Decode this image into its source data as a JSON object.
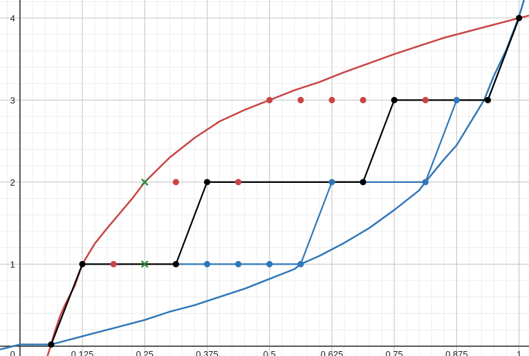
{
  "chart_data": {
    "type": "line",
    "title": "",
    "xlabel": "",
    "ylabel": "",
    "xlim": [
      -0.04,
      1.02
    ],
    "ylim": [
      -0.12,
      4.22
    ],
    "grid": true,
    "x_ticks": [
      {
        "value": 0.125,
        "label": "0.125"
      },
      {
        "value": 0.25,
        "label": "0.25"
      },
      {
        "value": 0.375,
        "label": "0.375"
      },
      {
        "value": 0.5,
        "label": "0.5"
      },
      {
        "value": 0.625,
        "label": "0.625"
      },
      {
        "value": 0.75,
        "label": "0.75"
      },
      {
        "value": 0.875,
        "label": "0.875"
      },
      {
        "value": 1,
        "label": "1"
      }
    ],
    "y_ticks": [
      {
        "value": 0,
        "label": "0"
      },
      {
        "value": 1,
        "label": "1"
      },
      {
        "value": 2,
        "label": "2"
      },
      {
        "value": 3,
        "label": "3"
      },
      {
        "value": 4,
        "label": "4"
      }
    ],
    "colors": {
      "red": "#c94444",
      "blue": "#2f76b8",
      "black": "#000000",
      "green": "#2e8b3e",
      "grid_major": "#c4c4c4",
      "grid_minor": "#ececec",
      "axis": "#333333"
    },
    "curves": [
      {
        "color": "red",
        "points": [
          [
            0.055,
            -0.12
          ],
          [
            0.0625,
            0.02
          ],
          [
            0.07,
            0.18
          ],
          [
            0.08,
            0.36
          ],
          [
            0.09,
            0.5
          ],
          [
            0.1,
            0.62
          ],
          [
            0.11,
            0.74
          ],
          [
            0.125,
            1.0
          ],
          [
            0.15,
            1.25
          ],
          [
            0.175,
            1.44
          ],
          [
            0.2,
            1.62
          ],
          [
            0.225,
            1.8
          ],
          [
            0.25,
            2.0
          ],
          [
            0.3,
            2.3
          ],
          [
            0.35,
            2.54
          ],
          [
            0.4,
            2.74
          ],
          [
            0.45,
            2.88
          ],
          [
            0.5,
            3.0
          ],
          [
            0.55,
            3.12
          ],
          [
            0.6,
            3.22
          ],
          [
            0.65,
            3.34
          ],
          [
            0.7,
            3.45
          ],
          [
            0.75,
            3.56
          ],
          [
            0.8,
            3.66
          ],
          [
            0.85,
            3.76
          ],
          [
            0.9,
            3.84
          ],
          [
            0.95,
            3.92
          ],
          [
            1.0,
            4.0
          ],
          [
            1.02,
            4.03
          ]
        ]
      },
      {
        "color": "blue",
        "points": [
          [
            -0.04,
            -0.04
          ],
          [
            0.0,
            0.02
          ],
          [
            0.0625,
            0.02
          ],
          [
            0.1,
            0.08
          ],
          [
            0.15,
            0.16
          ],
          [
            0.2,
            0.24
          ],
          [
            0.25,
            0.32
          ],
          [
            0.3,
            0.42
          ],
          [
            0.35,
            0.5
          ],
          [
            0.4,
            0.6
          ],
          [
            0.45,
            0.7
          ],
          [
            0.5,
            0.82
          ],
          [
            0.55,
            0.94
          ],
          [
            0.5625,
            1.0
          ],
          [
            0.6,
            1.1
          ],
          [
            0.65,
            1.26
          ],
          [
            0.7,
            1.44
          ],
          [
            0.75,
            1.66
          ],
          [
            0.8,
            1.9
          ],
          [
            0.8125,
            2.0
          ],
          [
            0.85,
            2.28
          ],
          [
            0.875,
            2.45
          ],
          [
            0.9,
            2.7
          ],
          [
            0.93,
            3.0
          ],
          [
            0.95,
            3.3
          ],
          [
            0.975,
            3.62
          ],
          [
            1.0,
            4.02
          ],
          [
            1.01,
            4.22
          ]
        ]
      }
    ],
    "step_paths": [
      {
        "color": "black",
        "points": [
          [
            0.0625,
            0.02
          ],
          [
            0.125,
            1
          ],
          [
            0.3125,
            1
          ],
          [
            0.375,
            2
          ],
          [
            0.6875,
            2
          ],
          [
            0.75,
            3
          ],
          [
            0.9375,
            3
          ],
          [
            1,
            4
          ]
        ]
      },
      {
        "color": "blue",
        "points": [
          [
            0.3125,
            1
          ],
          [
            0.5625,
            1
          ],
          [
            0.625,
            2
          ],
          [
            0.8125,
            2
          ],
          [
            0.875,
            3
          ],
          [
            0.9375,
            3
          ],
          [
            1,
            4
          ]
        ]
      },
      {
        "color": "blue",
        "points": [
          [
            0.625,
            2
          ],
          [
            0.6875,
            2
          ]
        ]
      }
    ],
    "points": {
      "red": [
        [
          0.1875,
          1
        ],
        [
          0.3125,
          2
        ],
        [
          0.4375,
          2
        ],
        [
          0.5,
          3
        ],
        [
          0.5625,
          3
        ],
        [
          0.625,
          3
        ],
        [
          0.6875,
          3
        ],
        [
          0.8125,
          3
        ]
      ],
      "blue": [
        [
          0.375,
          1
        ],
        [
          0.4375,
          1
        ],
        [
          0.5,
          1
        ],
        [
          0.5625,
          1
        ],
        [
          0.625,
          2
        ],
        [
          0.8125,
          2
        ],
        [
          0.875,
          3
        ]
      ],
      "black": [
        [
          0.0625,
          0.02
        ],
        [
          0.125,
          1
        ],
        [
          0.3125,
          1
        ],
        [
          0.375,
          2
        ],
        [
          0.6875,
          2
        ],
        [
          0.75,
          3
        ],
        [
          0.9375,
          3
        ],
        [
          1,
          4
        ]
      ],
      "green_x": [
        [
          0.25,
          2
        ],
        [
          0.25,
          1
        ]
      ]
    }
  }
}
